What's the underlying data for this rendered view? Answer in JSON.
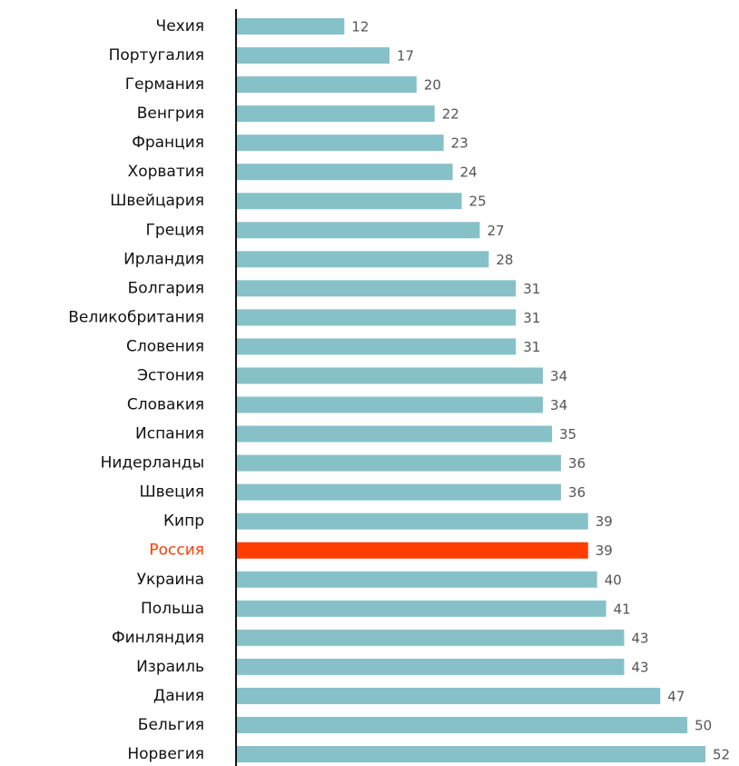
{
  "chart_data": {
    "type": "barh",
    "categories": [
      "Чехия",
      "Португалия",
      "Германия",
      "Венгрия",
      "Франция",
      "Хорватия",
      "Швейцария",
      "Греция",
      "Ирландия",
      "Болгария",
      "Великобритания",
      "Словения",
      "Эстония",
      "Словакия",
      "Испания",
      "Нидерланды",
      "Швеция",
      "Кипр",
      "Россия",
      "Украина",
      "Польша",
      "Финляндия",
      "Израиль",
      "Дания",
      "Бельгия",
      "Норвегия"
    ],
    "values": [
      12,
      17,
      20,
      22,
      23,
      24,
      25,
      27,
      28,
      31,
      31,
      31,
      34,
      34,
      35,
      36,
      36,
      39,
      39,
      40,
      41,
      43,
      43,
      47,
      50,
      52
    ],
    "color": "#87c1c8",
    "colors": [
      "#87c1c8",
      "#87c1c8",
      "#87c1c8",
      "#87c1c8",
      "#87c1c8",
      "#87c1c8",
      "#87c1c8",
      "#87c1c8",
      "#87c1c8",
      "#87c1c8",
      "#87c1c8",
      "#87c1c8",
      "#87c1c8",
      "#87c1c8",
      "#87c1c8",
      "#87c1c8",
      "#87c1c8",
      "#87c1c8",
      "#ff3d00",
      "#87c1c8",
      "#87c1c8",
      "#87c1c8",
      "#87c1c8",
      "#87c1c8",
      "#87c1c8",
      "#87c1c8"
    ]
  }
}
